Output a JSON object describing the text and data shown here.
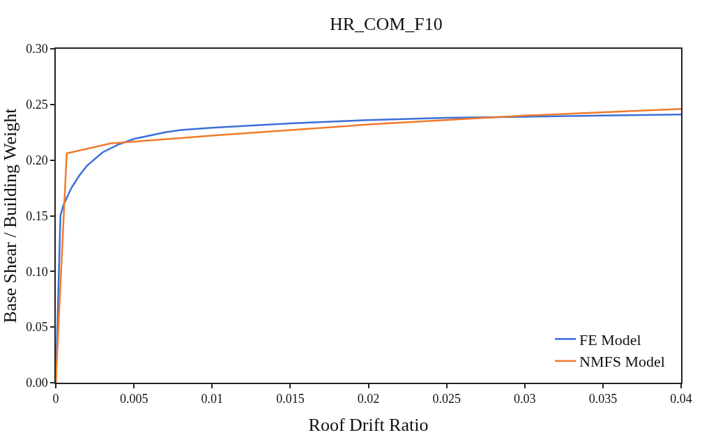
{
  "chart_data": {
    "type": "line",
    "title": "HR_COM_F10",
    "xlabel": "Roof Drift Ratio",
    "ylabel": "Base Shear / Building Weight",
    "xlim": [
      0,
      0.04
    ],
    "xticks": [
      0,
      0.005,
      0.01,
      0.015,
      0.02,
      0.025,
      0.03,
      0.035,
      0.04
    ],
    "ylim": [
      0,
      0.3
    ],
    "yticks": [
      {
        "value": 0,
        "label": "0.00"
      },
      {
        "value": 0.05,
        "label": "0.05"
      },
      {
        "value": 0.1,
        "label": "0.10"
      },
      {
        "value": 0.15,
        "label": "0.15"
      },
      {
        "value": 0.2,
        "label": "0.20"
      },
      {
        "value": 0.25,
        "label": "0.25"
      },
      {
        "value": 0.3,
        "label": "0.30"
      }
    ],
    "grid": false,
    "legend": "bottom right",
    "marker": "none",
    "line_style": "solid",
    "series": [
      {
        "name": "FE Model",
        "color": "#3a6fd8",
        "x": [
          0,
          0.0003,
          0.0005,
          0.001,
          0.0015,
          0.002,
          0.003,
          0.004,
          0.005,
          0.006,
          0.007,
          0.008,
          0.01,
          0.015,
          0.02,
          0.025,
          0.03,
          0.035,
          0.04
        ],
        "values": [
          0,
          0.15,
          0.16,
          0.175,
          0.186,
          0.195,
          0.207,
          0.214,
          0.219,
          0.222,
          0.225,
          0.227,
          0.229,
          0.233,
          0.236,
          0.238,
          0.239,
          0.24,
          0.241
        ]
      },
      {
        "name": "NMFS Model",
        "color": "#f07a2a",
        "x": [
          0,
          0.0007,
          0.0035,
          0.01,
          0.02,
          0.03,
          0.04
        ],
        "values": [
          0,
          0.206,
          0.215,
          0.222,
          0.232,
          0.24,
          0.246
        ]
      }
    ]
  }
}
